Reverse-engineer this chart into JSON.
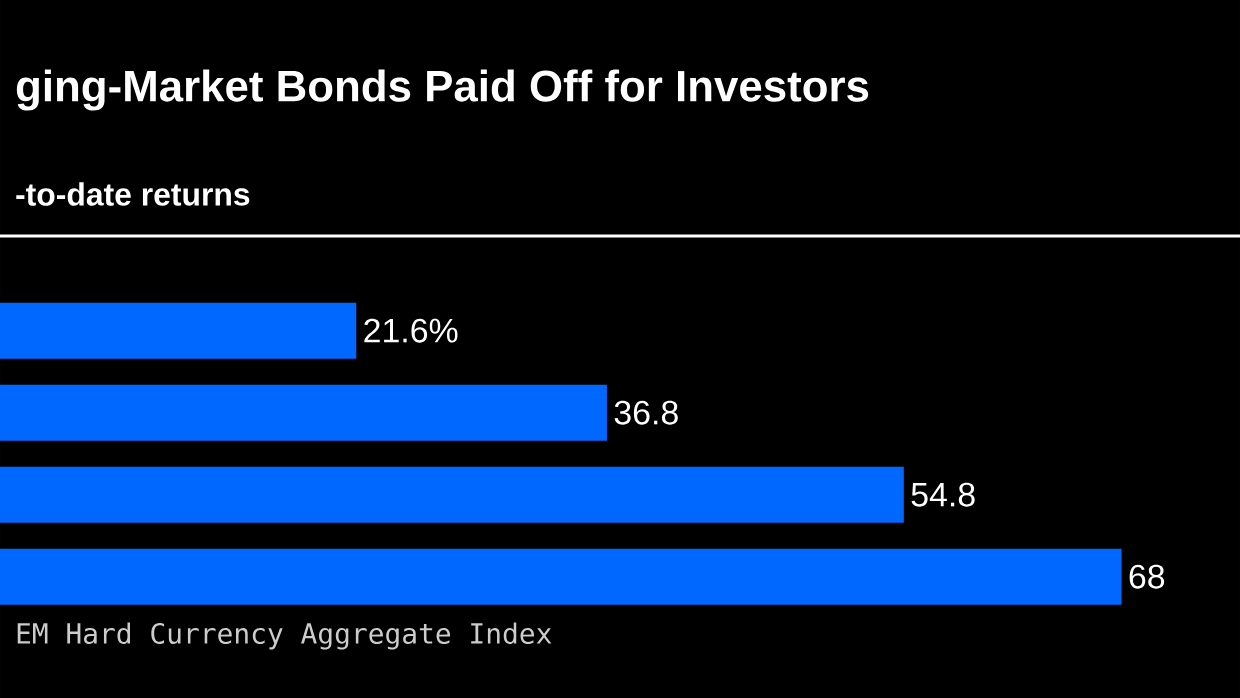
{
  "chart_data": {
    "type": "bar",
    "orientation": "horizontal",
    "title": "ging-Market Bonds Paid Off for Investors",
    "subtitle": "-to-date returns",
    "categories": [
      null,
      null,
      null,
      null
    ],
    "values": [
      21.6,
      36.8,
      54.8,
      68
    ],
    "color": "#0068ff",
    "value_labels": [
      "21.6%",
      "36.8",
      "54.8",
      "68"
    ],
    "annotations": [
      "EM Hard Currency Aggregate Index"
    ]
  }
}
